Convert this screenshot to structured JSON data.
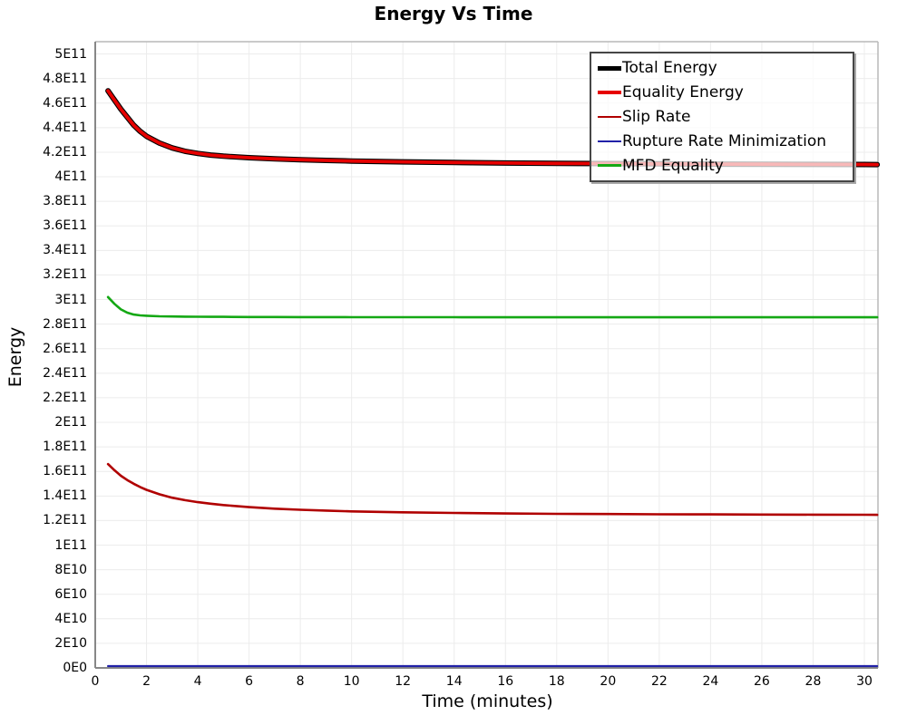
{
  "title": "Energy Vs Time",
  "accent_colors": {
    "grid": "#ececec",
    "axis_dark": "#878787",
    "axis_light": "#b9b9b9",
    "legend_border": "#464646"
  },
  "chart_data": {
    "type": "line",
    "title": "Energy Vs Time",
    "xlabel": "Time (minutes)",
    "ylabel": "Energy",
    "xlim": [
      0,
      30.5
    ],
    "ylim": [
      0,
      510000000000.0
    ],
    "grid": true,
    "legend_position": "top-right",
    "x_tick_values": [
      0,
      2,
      4,
      6,
      8,
      10,
      12,
      14,
      16,
      18,
      20,
      22,
      24,
      26,
      28,
      30
    ],
    "x_tick_labels": [
      "0",
      "2",
      "4",
      "6",
      "8",
      "10",
      "12",
      "14",
      "16",
      "18",
      "20",
      "22",
      "24",
      "26",
      "28",
      "30"
    ],
    "y_tick_step": 20000000000.0,
    "y_tick_labels": [
      "0E0",
      "2E10",
      "4E10",
      "6E10",
      "8E10",
      "1E11",
      "1.2E11",
      "1.4E11",
      "1.6E11",
      "1.8E11",
      "2E11",
      "2.2E11",
      "2.4E11",
      "2.6E11",
      "2.8E11",
      "3E11",
      "3.2E11",
      "3.4E11",
      "3.6E11",
      "3.8E11",
      "4E11",
      "4.2E11",
      "4.4E11",
      "4.6E11",
      "4.8E11",
      "5E11"
    ],
    "series": [
      {
        "name": "Total Energy",
        "color": "#000000",
        "width": 6,
        "x": [
          0.5,
          0.75,
          1,
          1.25,
          1.5,
          1.75,
          2,
          2.5,
          3,
          3.5,
          4,
          4.5,
          5,
          6,
          7,
          8,
          9,
          10,
          12,
          14,
          16,
          18,
          20,
          22,
          24,
          26,
          28,
          30,
          30.5
        ],
        "y": [
          470000000000.0,
          462500000000.0,
          455000000000.0,
          448500000000.0,
          442000000000.0,
          437000000000.0,
          433000000000.0,
          427500000000.0,
          423500000000.0,
          420800000000.0,
          419000000000.0,
          417700000000.0,
          416800000000.0,
          415500000000.0,
          414600000000.0,
          413900000000.0,
          413300000000.0,
          412800000000.0,
          412100000000.0,
          411600000000.0,
          411200000000.0,
          410900000000.0,
          410700000000.0,
          410500000000.0,
          410300000000.0,
          410200000000.0,
          410100000000.0,
          410000000000.0,
          409950000000.0
        ]
      },
      {
        "name": "Equality Energy",
        "color": "#e60000",
        "width": 3.8,
        "x": [
          0.5,
          0.75,
          1,
          1.25,
          1.5,
          1.75,
          2,
          2.5,
          3,
          3.5,
          4,
          4.5,
          5,
          6,
          7,
          8,
          9,
          10,
          12,
          14,
          16,
          18,
          20,
          22,
          24,
          26,
          28,
          30,
          30.5
        ],
        "y": [
          470000000000.0,
          462500000000.0,
          455000000000.0,
          448500000000.0,
          442000000000.0,
          437000000000.0,
          433000000000.0,
          427500000000.0,
          423500000000.0,
          420800000000.0,
          419000000000.0,
          417700000000.0,
          416800000000.0,
          415500000000.0,
          414600000000.0,
          413900000000.0,
          413300000000.0,
          412800000000.0,
          412100000000.0,
          411600000000.0,
          411200000000.0,
          410900000000.0,
          410700000000.0,
          410500000000.0,
          410300000000.0,
          410200000000.0,
          410100000000.0,
          410000000000.0,
          409950000000.0
        ]
      },
      {
        "name": "Slip Rate",
        "color": "#b00000",
        "width": 2.6,
        "x": [
          0.5,
          0.75,
          1,
          1.25,
          1.5,
          1.75,
          2,
          2.5,
          3,
          3.5,
          4,
          4.5,
          5,
          6,
          7,
          8,
          9,
          10,
          12,
          14,
          16,
          18,
          20,
          22,
          24,
          26,
          28,
          30,
          30.5
        ],
        "y": [
          166000000000.0,
          161000000000.0,
          156500000000.0,
          153000000000.0,
          150000000000.0,
          147300000000.0,
          145000000000.0,
          141400000000.0,
          138600000000.0,
          136600000000.0,
          135000000000.0,
          133700000000.0,
          132600000000.0,
          130900000000.0,
          129700000000.0,
          128800000000.0,
          128100000000.0,
          127500000000.0,
          126700000000.0,
          126200000000.0,
          125800000000.0,
          125500000000.0,
          125300000000.0,
          125100000000.0,
          125000000000.0,
          124900000000.0,
          124800000000.0,
          124700000000.0,
          124680000000.0
        ]
      },
      {
        "name": "Rupture Rate Minimization",
        "color": "#2121a8",
        "width": 2.2,
        "x": [
          0.5,
          5,
          10,
          15,
          20,
          25,
          30.5
        ],
        "y": [
          1500000000.0,
          1500000000.0,
          1500000000.0,
          1500000000.0,
          1500000000.0,
          1500000000.0,
          1500000000.0
        ]
      },
      {
        "name": "MFD Equality",
        "color": "#14a814",
        "width": 2.6,
        "x": [
          0.5,
          0.75,
          1,
          1.25,
          1.5,
          1.75,
          2,
          2.5,
          3,
          3.5,
          4,
          4.5,
          5,
          6,
          7,
          8,
          9,
          10,
          12,
          14,
          16,
          18,
          20,
          22,
          24,
          26,
          28,
          30,
          30.5
        ],
        "y": [
          302000000000.0,
          296500000000.0,
          292000000000.0,
          289300000000.0,
          287800000000.0,
          287100000000.0,
          286800000000.0,
          286400000000.0,
          286200000000.0,
          286100000000.0,
          286000000000.0,
          285950000000.0,
          285900000000.0,
          285800000000.0,
          285750000000.0,
          285700000000.0,
          285680000000.0,
          285660000000.0,
          285620000000.0,
          285600000000.0,
          285580000000.0,
          285570000000.0,
          285560000000.0,
          285550000000.0,
          285540000000.0,
          285540000000.0,
          285530000000.0,
          285530000000.0,
          285530000000.0
        ]
      }
    ]
  }
}
